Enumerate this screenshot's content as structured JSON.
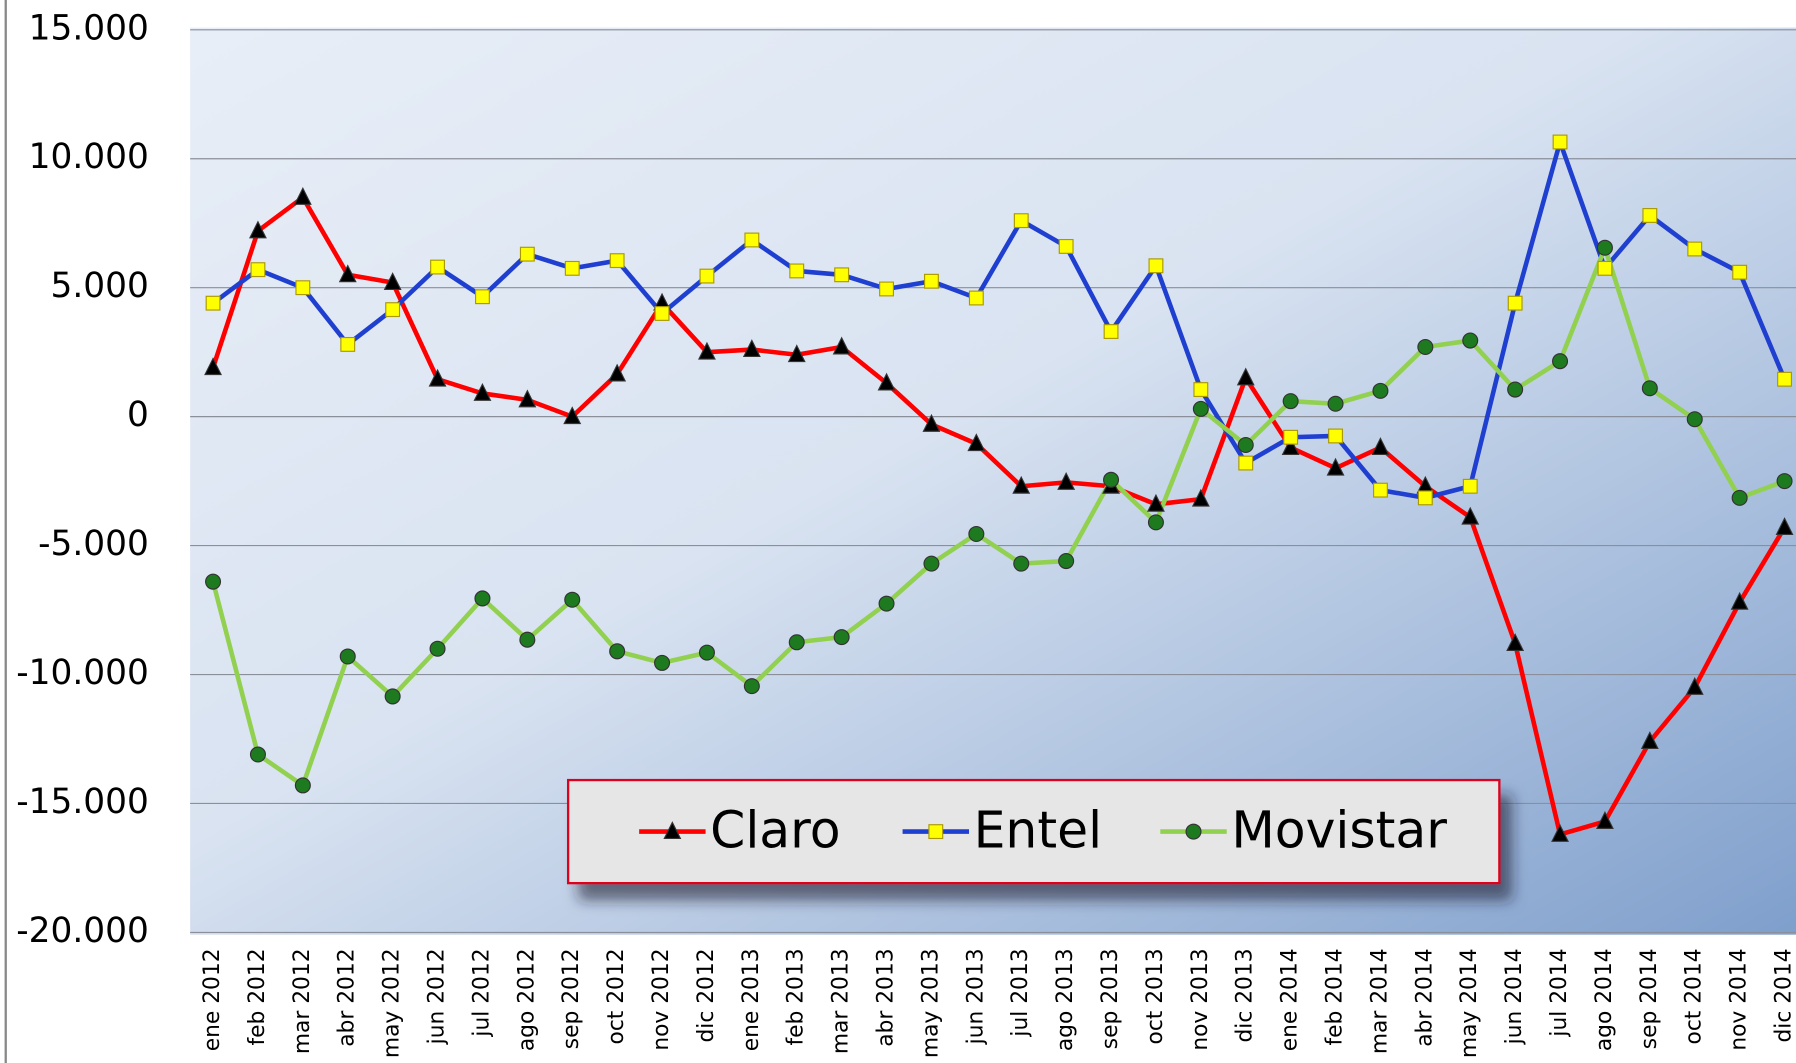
{
  "chart_data": {
    "type": "line",
    "categories": [
      "ene 2012",
      "feb 2012",
      "mar 2012",
      "abr 2012",
      "may 2012",
      "jun 2012",
      "jul 2012",
      "ago 2012",
      "sep 2012",
      "oct 2012",
      "nov 2012",
      "dic 2012",
      "ene 2013",
      "feb 2013",
      "mar 2013",
      "abr 2013",
      "may 2013",
      "jun 2013",
      "jul 2013",
      "ago 2013",
      "sep 2013",
      "oct 2013",
      "nov 2013",
      "dic 2013",
      "ene 2014",
      "feb 2014",
      "mar 2014",
      "abr 2014",
      "may 2014",
      "jun 2014",
      "jul 2014",
      "ago 2014",
      "sep 2014",
      "oct 2014",
      "nov 2014",
      "dic 2014"
    ],
    "series": [
      {
        "name": "Claro",
        "color": "#ff0000",
        "marker": "triangle",
        "marker_color": "#000000",
        "values": [
          1900,
          7200,
          8500,
          5500,
          5200,
          1450,
          900,
          650,
          0,
          1650,
          4400,
          2500,
          2600,
          2400,
          2700,
          1300,
          -300,
          -1050,
          -2700,
          -2550,
          -2700,
          -3400,
          -3200,
          1500,
          -1200,
          -2000,
          -1200,
          -2700,
          -3900,
          -8800,
          -16200,
          -15700,
          -12600,
          -10500,
          -7200,
          -4300
        ]
      },
      {
        "name": "Entel",
        "color": "#1f3fd0",
        "marker": "square",
        "marker_color": "#ffff00",
        "values": [
          4400,
          5700,
          5000,
          2800,
          4150,
          5800,
          4650,
          6300,
          5750,
          6050,
          4000,
          5450,
          6850,
          5650,
          5500,
          4950,
          5250,
          4600,
          7600,
          6600,
          3300,
          5850,
          1050,
          -1800,
          -800,
          -750,
          -2850,
          -3150,
          -2700,
          4400,
          10650,
          5750,
          7800,
          6500,
          5600,
          1450
        ]
      },
      {
        "name": "Movistar",
        "color": "#92d050",
        "marker": "circle",
        "marker_color": "#1e7a1e",
        "values": [
          -6400,
          -13100,
          -14300,
          -9300,
          -10850,
          -9000,
          -7050,
          -8650,
          -7100,
          -9100,
          -9550,
          -9150,
          -10450,
          -8750,
          -8550,
          -7250,
          -5700,
          -4550,
          -5700,
          -5600,
          -2450,
          -4100,
          300,
          -1100,
          600,
          500,
          1000,
          2700,
          2950,
          1050,
          2150,
          6550,
          1100,
          -100,
          -3150,
          -2500
        ]
      }
    ],
    "ylim": [
      -20000,
      15000
    ],
    "yticks": [
      {
        "value": -20000,
        "label": "-20.000"
      },
      {
        "value": -15000,
        "label": "-15.000"
      },
      {
        "value": -10000,
        "label": "-10.000"
      },
      {
        "value": -5000,
        "label": "-5.000"
      },
      0,
      {
        "value": 5000,
        "label": "5.000"
      },
      {
        "value": 10000,
        "label": "10.000"
      },
      {
        "value": 15000,
        "label": "15.000"
      }
    ],
    "grid": true,
    "legend": "bottom"
  }
}
